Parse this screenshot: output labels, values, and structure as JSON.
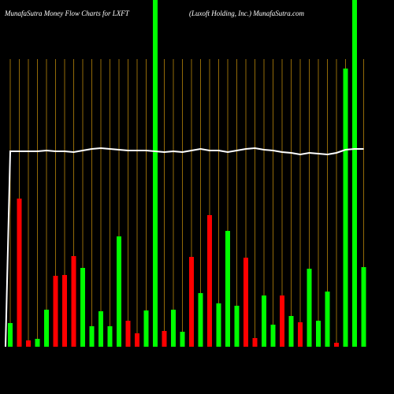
{
  "chart_data": {
    "type": "bar",
    "title": "MunafaSutra  Money Flow  Charts for LXFT",
    "subtitle": "(Luxoft Holding,  Inc.) MunafaSutra.com",
    "categories": [
      null,
      null,
      null,
      null,
      null,
      null,
      null,
      null,
      null,
      null,
      null,
      null,
      null,
      null,
      null,
      null,
      null,
      null,
      null,
      null,
      null,
      null,
      null,
      null,
      null,
      null,
      null,
      null,
      null,
      null,
      null,
      null,
      null,
      null,
      null,
      null,
      null,
      null,
      null,
      null
    ],
    "series": [
      {
        "type": "bar",
        "values": [
          30,
          188,
          8,
          10,
          47,
          90,
          91,
          115,
          100,
          26,
          45,
          26,
          140,
          33,
          17,
          46,
          440,
          20,
          47,
          19,
          114,
          68,
          167,
          55,
          147,
          52,
          113,
          11,
          65,
          28,
          65,
          39,
          31,
          99,
          33,
          70,
          5,
          353,
          440,
          101
        ],
        "colors": [
          "#00ff00",
          "#ff0000",
          "#ff0000",
          "#00ff00",
          "#00ff00",
          "#ff0000",
          "#ff0000",
          "#ff0000",
          "#00ff00",
          "#00ff00",
          "#00ff00",
          "#00ff00",
          "#00ff00",
          "#ff0000",
          "#ff0000",
          "#00ff00",
          "#00ff00",
          "#ff0000",
          "#00ff00",
          "#00ff00",
          "#ff0000",
          "#00ff00",
          "#ff0000",
          "#00ff00",
          "#00ff00",
          "#00ff00",
          "#ff0000",
          "#ff0000",
          "#00ff00",
          "#00ff00",
          "#ff0000",
          "#00ff00",
          "#ff0000",
          "#00ff00",
          "#00ff00",
          "#00ff00",
          "#ff0000",
          "#00ff00",
          "#00ff00",
          "#00ff00"
        ]
      },
      {
        "type": "line",
        "color": "#ffffff",
        "values": [
          248,
          248,
          248,
          248,
          249,
          248,
          248,
          247,
          249,
          251,
          252,
          251,
          250,
          249,
          249,
          249,
          248,
          247,
          248,
          247,
          249,
          251,
          249,
          249,
          247,
          249,
          251,
          252,
          250,
          249,
          247,
          246,
          244,
          246,
          245,
          244,
          246,
          250,
          251,
          251
        ]
      }
    ],
    "ylim": [
      0,
      440
    ]
  }
}
